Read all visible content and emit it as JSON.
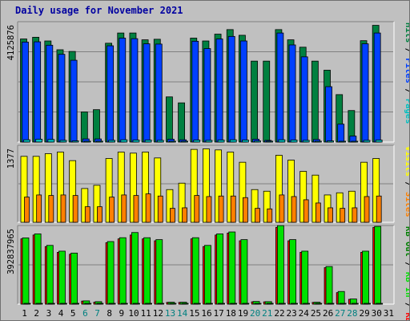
{
  "title": "Daily usage for November 2021",
  "colors": {
    "hits": "#008040",
    "files": "#0040ff",
    "pages": "#00c0c0",
    "visits": "#ffff00",
    "sites": "#ff8000",
    "kbf": "#ff0000",
    "kbin": "#00e000",
    "kbout": "#008000",
    "weekday_label": "#000000",
    "weekend_label": "#008080"
  },
  "chart_data": [
    {
      "type": "bar",
      "panel": "hits-files-pages",
      "ylabel_max": "4125876",
      "legend": [
        {
          "key": "pages",
          "text": "Pages"
        },
        {
          "key": "files",
          "text": "Files"
        },
        {
          "key": "hits",
          "text": "Hits"
        }
      ],
      "ymax": 4125876,
      "categories": [
        "1",
        "2",
        "3",
        "4",
        "5",
        "6",
        "7",
        "8",
        "9",
        "10",
        "11",
        "12",
        "13",
        "14",
        "15",
        "16",
        "17",
        "18",
        "19",
        "20",
        "21",
        "22",
        "23",
        "24",
        "25",
        "26",
        "27",
        "28",
        "29",
        "30",
        "31"
      ],
      "series": [
        {
          "key": "hits",
          "values": [
            3630000,
            3690000,
            3560000,
            3250000,
            3190000,
            1060000,
            1140000,
            3480000,
            3840000,
            3840000,
            3600000,
            3620000,
            1590000,
            1380000,
            3660000,
            3560000,
            3800000,
            3960000,
            3760000,
            2850000,
            2850000,
            3960000,
            3600000,
            3340000,
            2850000,
            2530000,
            1670000,
            1110000,
            3570000,
            4110000,
            0
          ]
        },
        {
          "key": "files",
          "values": [
            3520000,
            3530000,
            3410000,
            3090000,
            2880000,
            110000,
            110000,
            3390000,
            3660000,
            3640000,
            3460000,
            3450000,
            100000,
            80000,
            3550000,
            3290000,
            3630000,
            3720000,
            3560000,
            100000,
            60000,
            3840000,
            3420000,
            3000000,
            90000,
            1950000,
            630000,
            210000,
            3460000,
            3840000,
            0
          ]
        },
        {
          "key": "pages",
          "values": [
            80000,
            100000,
            90000,
            60000,
            40000,
            30000,
            30000,
            60000,
            80000,
            70000,
            70000,
            60000,
            30000,
            30000,
            70000,
            60000,
            70000,
            80000,
            70000,
            40000,
            30000,
            80000,
            70000,
            60000,
            30000,
            40000,
            20000,
            10000,
            60000,
            70000,
            0
          ]
        }
      ]
    },
    {
      "type": "bar",
      "panel": "visits-sites",
      "ylabel_max": "1377",
      "legend": [
        {
          "key": "sites",
          "text": "Sites"
        },
        {
          "key": "visits",
          "text": "Visits"
        }
      ],
      "ymax": 1377,
      "categories": [
        "1",
        "2",
        "3",
        "4",
        "5",
        "6",
        "7",
        "8",
        "9",
        "10",
        "11",
        "12",
        "13",
        "14",
        "15",
        "16",
        "17",
        "18",
        "19",
        "20",
        "21",
        "22",
        "23",
        "24",
        "25",
        "26",
        "27",
        "28",
        "29",
        "30",
        "31"
      ],
      "series": [
        {
          "key": "visits",
          "values": [
            1230,
            1230,
            1280,
            1310,
            1150,
            630,
            690,
            1190,
            1310,
            1290,
            1310,
            1200,
            610,
            730,
            1360,
            1370,
            1350,
            1310,
            1120,
            610,
            580,
            1250,
            1160,
            950,
            880,
            510,
            550,
            580,
            1120,
            1190,
            0
          ]
        },
        {
          "key": "sites",
          "values": [
            470,
            510,
            500,
            510,
            500,
            290,
            290,
            470,
            510,
            500,
            530,
            490,
            260,
            270,
            500,
            480,
            490,
            490,
            460,
            260,
            250,
            510,
            480,
            420,
            360,
            270,
            260,
            270,
            480,
            490,
            0
          ]
        }
      ]
    },
    {
      "type": "bar",
      "panel": "kbytes",
      "ylabel_max": "392837965",
      "legend": [
        {
          "key": "kbf",
          "text": "KB F"
        },
        {
          "key": "kbin",
          "text": "KB In"
        },
        {
          "key": "kbout",
          "text": "KB Out"
        }
      ],
      "ymax": 392837965,
      "categories": [
        "1",
        "2",
        "3",
        "4",
        "5",
        "6",
        "7",
        "8",
        "9",
        "10",
        "11",
        "12",
        "13",
        "14",
        "15",
        "16",
        "17",
        "18",
        "19",
        "20",
        "21",
        "22",
        "23",
        "24",
        "25",
        "26",
        "27",
        "28",
        "29",
        "30",
        "31"
      ],
      "series": [
        {
          "key": "kbf",
          "values": [
            340000000,
            360000000,
            300000000,
            270000000,
            260000000,
            16000000,
            10000000,
            320000000,
            340000000,
            360000000,
            340000000,
            330000000,
            9000000,
            9000000,
            340000000,
            300000000,
            360000000,
            370000000,
            330000000,
            12000000,
            12000000,
            400000000,
            330000000,
            270000000,
            9000000,
            190000000,
            60000000,
            25000000,
            270000000,
            400000000,
            0
          ]
        },
        {
          "key": "kbin",
          "values": [
            345000000,
            366000000,
            306000000,
            276000000,
            266000000,
            17000000,
            13000000,
            326000000,
            346000000,
            373000000,
            346000000,
            336000000,
            10000000,
            10000000,
            346000000,
            306000000,
            366000000,
            376000000,
            336000000,
            14000000,
            13000000,
            409000000,
            336000000,
            276000000,
            10000000,
            196000000,
            66000000,
            27000000,
            276000000,
            405000000,
            0
          ]
        },
        {
          "key": "kbout",
          "values": [
            3000000,
            3000000,
            3000000,
            2000000,
            2000000,
            1000000,
            1000000,
            3000000,
            3000000,
            3000000,
            3000000,
            3000000,
            1000000,
            1000000,
            3000000,
            3000000,
            3000000,
            3000000,
            3000000,
            1000000,
            1000000,
            3000000,
            3000000,
            2000000,
            1000000,
            2000000,
            1000000,
            1000000,
            2000000,
            3000000,
            0
          ]
        }
      ]
    }
  ],
  "weekend_days": [
    "6",
    "7",
    "13",
    "14",
    "20",
    "21",
    "27",
    "28"
  ]
}
